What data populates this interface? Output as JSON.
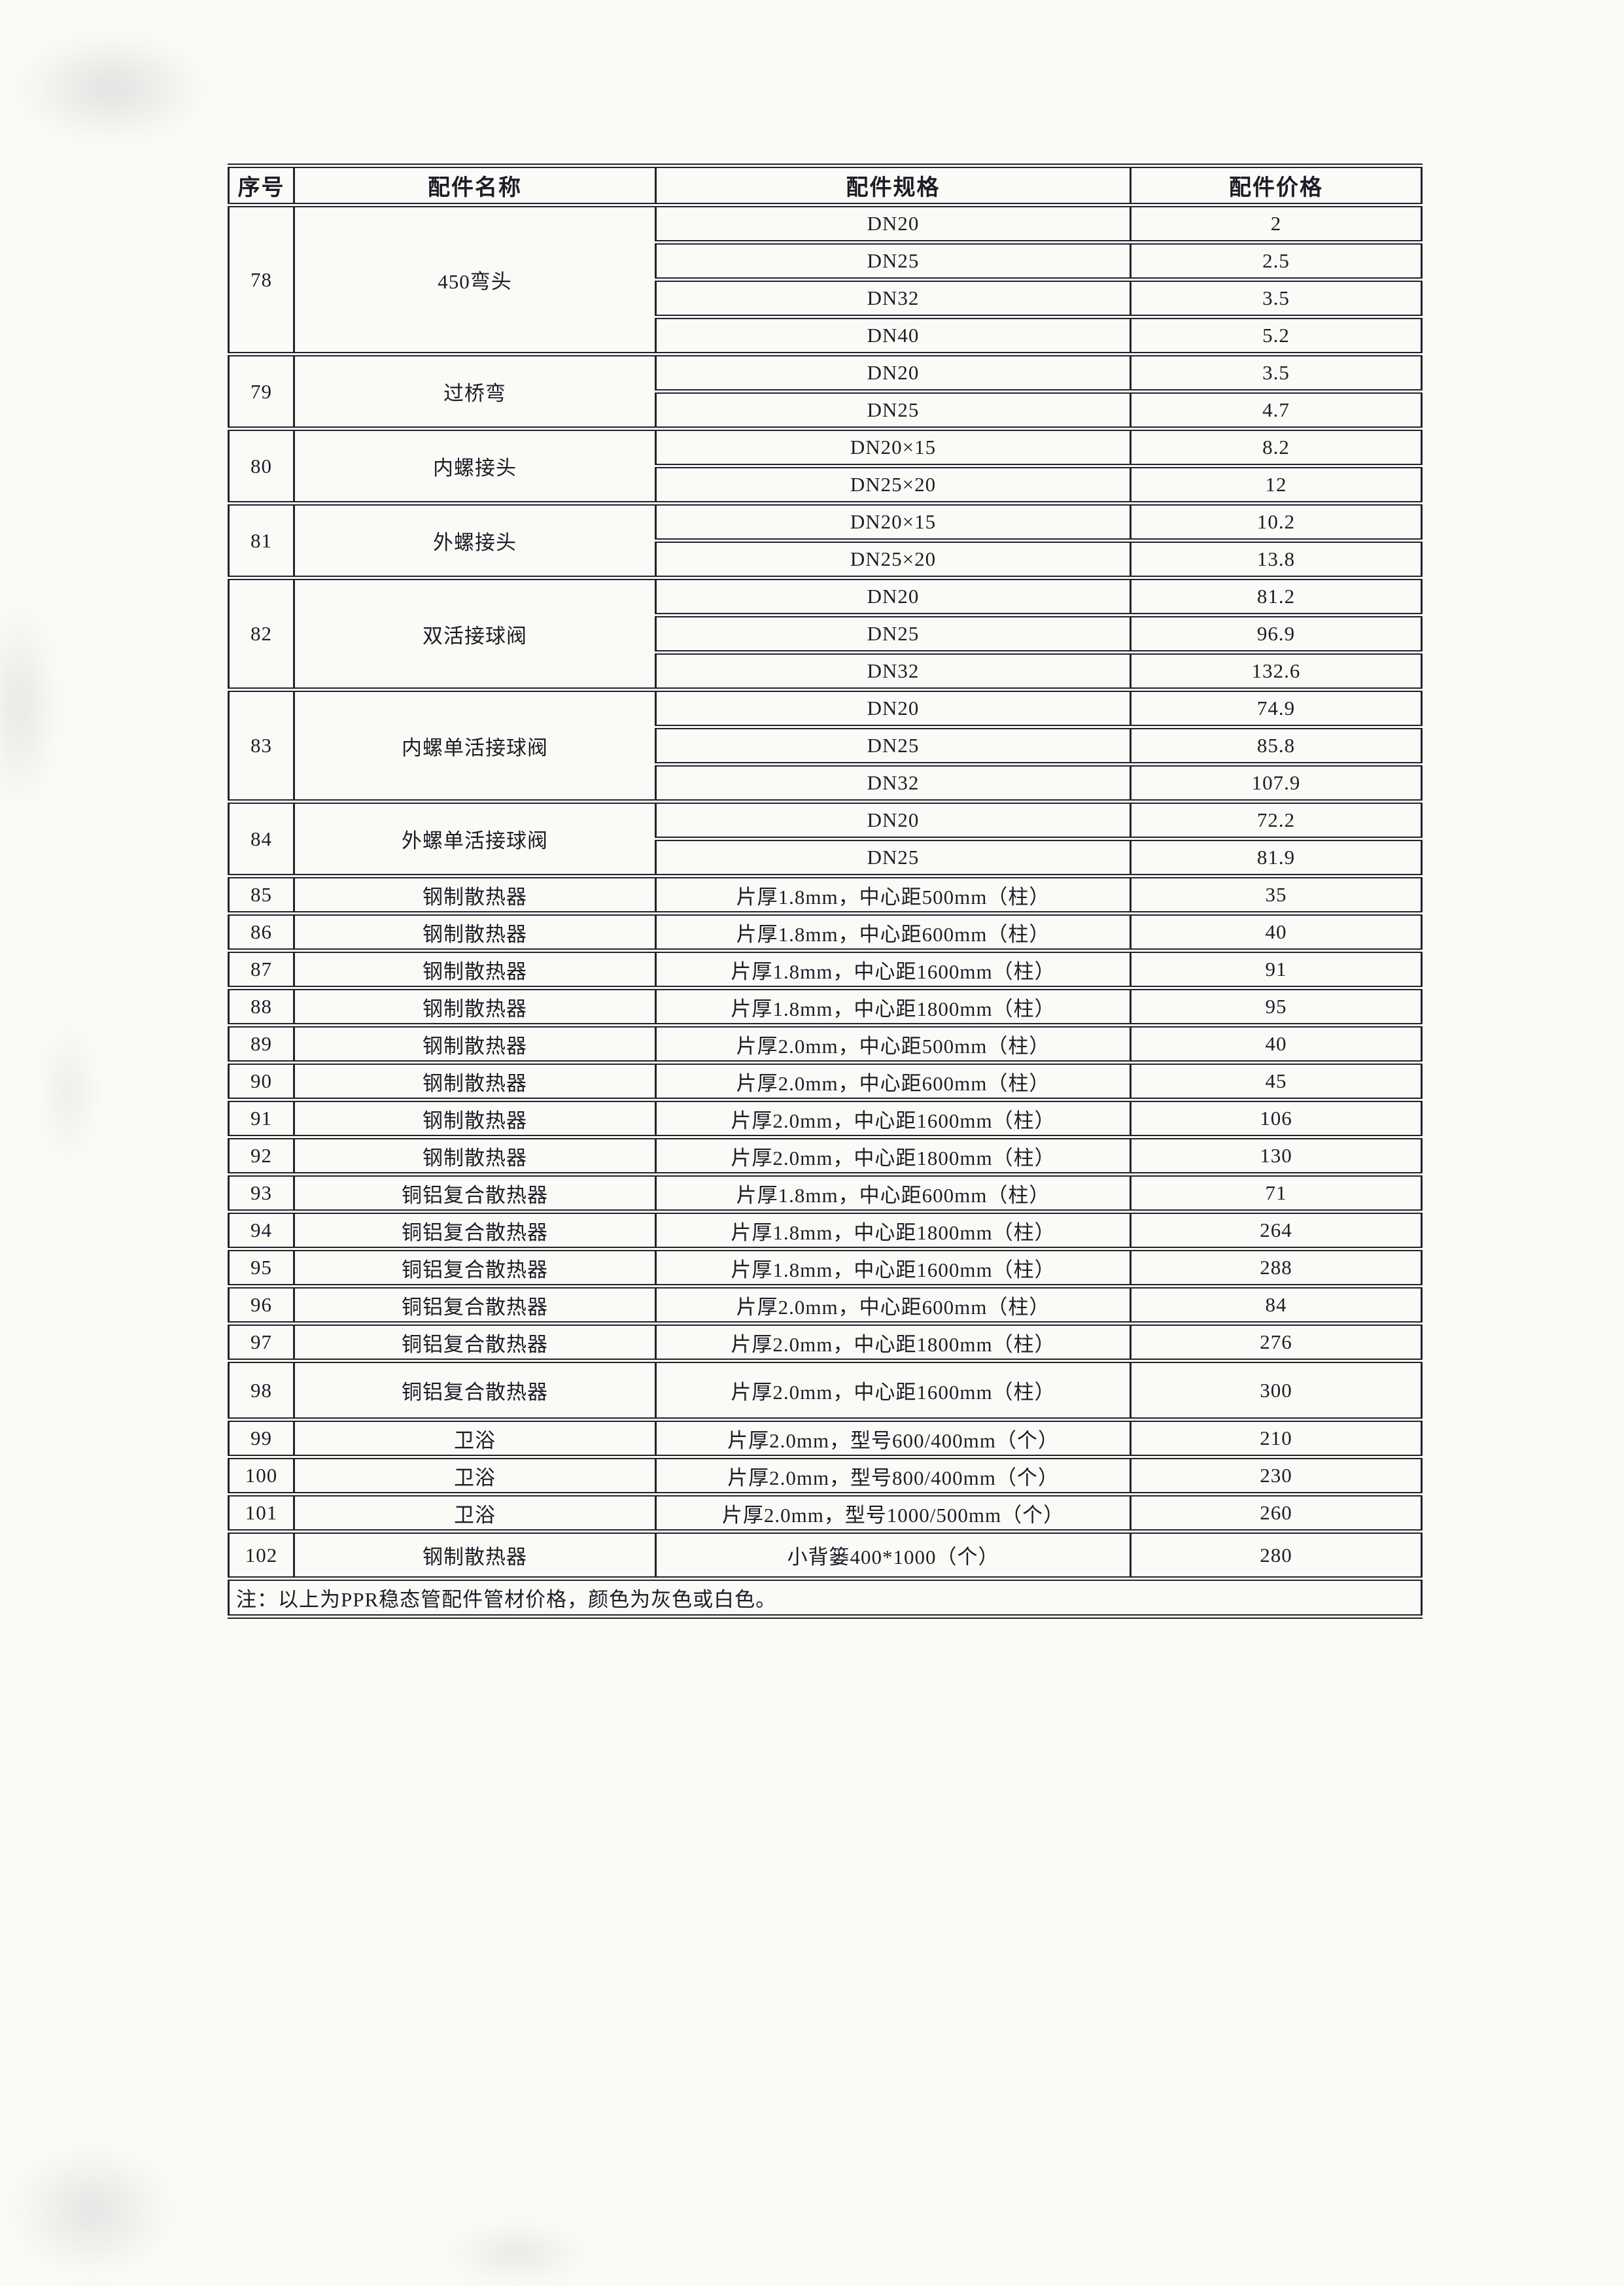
{
  "colors": {
    "ink": "#1d1d27",
    "line": "#23232e",
    "paper": "#fbfaf7"
  },
  "table": {
    "headers": [
      "序号",
      "配件名称",
      "配件规格",
      "配件价格"
    ],
    "groups": [
      {
        "no": "78",
        "name": "450弯头",
        "rows": [
          [
            "DN20",
            "2"
          ],
          [
            "DN25",
            "2.5"
          ],
          [
            "DN32",
            "3.5"
          ],
          [
            "DN40",
            "5.2"
          ]
        ]
      },
      {
        "no": "79",
        "name": "过桥弯",
        "rows": [
          [
            "DN20",
            "3.5"
          ],
          [
            "DN25",
            "4.7"
          ]
        ]
      },
      {
        "no": "80",
        "name": "内螺接头",
        "rows": [
          [
            "DN20×15",
            "8.2"
          ],
          [
            "DN25×20",
            "12"
          ]
        ]
      },
      {
        "no": "81",
        "name": "外螺接头",
        "rows": [
          [
            "DN20×15",
            "10.2"
          ],
          [
            "DN25×20",
            "13.8"
          ]
        ]
      },
      {
        "no": "82",
        "name": "双活接球阀",
        "rows": [
          [
            "DN20",
            "81.2"
          ],
          [
            "DN25",
            "96.9"
          ],
          [
            "DN32",
            "132.6"
          ]
        ]
      },
      {
        "no": "83",
        "name": "内螺单活接球阀",
        "rows": [
          [
            "DN20",
            "74.9"
          ],
          [
            "DN25",
            "85.8"
          ],
          [
            "DN32",
            "107.9"
          ]
        ]
      },
      {
        "no": "84",
        "name": "外螺单活接球阀",
        "rows": [
          [
            "DN20",
            "72.2"
          ],
          [
            "DN25",
            "81.9"
          ]
        ]
      },
      {
        "no": "85",
        "name": "钢制散热器",
        "rows": [
          [
            "片厚1.8mm，中心距500mm（柱）",
            "35"
          ]
        ]
      },
      {
        "no": "86",
        "name": "钢制散热器",
        "rows": [
          [
            "片厚1.8mm，中心距600mm（柱）",
            "40"
          ]
        ]
      },
      {
        "no": "87",
        "name": "钢制散热器",
        "rows": [
          [
            "片厚1.8mm，中心距1600mm（柱）",
            "91"
          ]
        ]
      },
      {
        "no": "88",
        "name": "钢制散热器",
        "rows": [
          [
            "片厚1.8mm，中心距1800mm（柱）",
            "95"
          ]
        ]
      },
      {
        "no": "89",
        "name": "钢制散热器",
        "rows": [
          [
            "片厚2.0mm，中心距500mm（柱）",
            "40"
          ]
        ]
      },
      {
        "no": "90",
        "name": "钢制散热器",
        "rows": [
          [
            "片厚2.0mm，中心距600mm（柱）",
            "45"
          ]
        ]
      },
      {
        "no": "91",
        "name": "钢制散热器",
        "rows": [
          [
            "片厚2.0mm，中心距1600mm（柱）",
            "106"
          ]
        ]
      },
      {
        "no": "92",
        "name": "钢制散热器",
        "rows": [
          [
            "片厚2.0mm，中心距1800mm（柱）",
            "130"
          ]
        ]
      },
      {
        "no": "93",
        "name": "铜铝复合散热器",
        "rows": [
          [
            "片厚1.8mm，中心距600mm（柱）",
            "71"
          ]
        ]
      },
      {
        "no": "94",
        "name": "铜铝复合散热器",
        "rows": [
          [
            "片厚1.8mm，中心距1800mm（柱）",
            "264"
          ]
        ]
      },
      {
        "no": "95",
        "name": "铜铝复合散热器",
        "rows": [
          [
            "片厚1.8mm，中心距1600mm（柱）",
            "288"
          ]
        ]
      },
      {
        "no": "96",
        "name": "铜铝复合散热器",
        "rows": [
          [
            "片厚2.0mm，中心距600mm（柱）",
            "84"
          ]
        ]
      },
      {
        "no": "97",
        "name": "铜铝复合散热器",
        "rows": [
          [
            "片厚2.0mm，中心距1800mm（柱）",
            "276"
          ]
        ]
      },
      {
        "no": "98",
        "name": "铜铝复合散热器",
        "rows": [
          [
            "片厚2.0mm，中心距1600mm（柱）",
            "300"
          ]
        ]
      },
      {
        "no": "99",
        "name": "卫浴",
        "rows": [
          [
            "片厚2.0mm，型号600/400mm（个）",
            "210"
          ]
        ]
      },
      {
        "no": "100",
        "name": "卫浴",
        "rows": [
          [
            "片厚2.0mm，型号800/400mm（个）",
            "230"
          ]
        ]
      },
      {
        "no": "101",
        "name": "卫浴",
        "rows": [
          [
            "片厚2.0mm，型号1000/500mm（个）",
            "260"
          ]
        ]
      },
      {
        "no": "102",
        "name": "钢制散热器",
        "rows": [
          [
            "小背篓400*1000（个）",
            "280"
          ]
        ]
      }
    ],
    "note": "注：以上为PPR稳态管配件管材价格，颜色为灰色或白色。"
  }
}
